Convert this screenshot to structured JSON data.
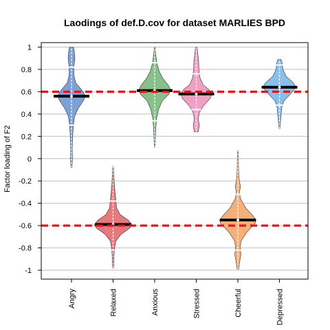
{
  "chart_data": {
    "type": "violin",
    "title": "Laodings of def.D.cov for dataset MARLIES BPD",
    "xlabel": "",
    "ylabel": "Factor loading of F2",
    "ylim": [
      -1.08,
      1.04
    ],
    "yticks": [
      1,
      0.8,
      0.6,
      0.4,
      0.2,
      0,
      -0.2,
      -0.4,
      -0.6,
      -0.8,
      -1
    ],
    "ytick_labels": [
      "1",
      "0.8",
      "0.6",
      "0.4",
      "0.2",
      "0",
      "-0.2",
      "-0.4",
      "-0.6",
      "-0.8",
      "-1"
    ],
    "grid": true,
    "reference_lines": [
      0.6,
      -0.6
    ],
    "reference_line_color": "#e8141b",
    "median_color": "#000000",
    "categories": [
      "Angry",
      "Relaxed",
      "Anxious",
      "Stressed",
      "Cheerful",
      "Depressed"
    ],
    "series": [
      {
        "category": "Angry",
        "color": "#7aa2d8",
        "median": 0.56,
        "ymin": -0.08,
        "ymax": 1.0,
        "mean": 0.56,
        "sd_low": 0.3,
        "sd_high": 0.82,
        "profile": [
          [
            -0.08,
            0.03
          ],
          [
            0.0,
            0.05
          ],
          [
            0.08,
            0.04
          ],
          [
            0.15,
            0.05
          ],
          [
            0.25,
            0.08
          ],
          [
            0.3,
            0.1
          ],
          [
            0.38,
            0.16
          ],
          [
            0.45,
            0.35
          ],
          [
            0.52,
            0.62
          ],
          [
            0.56,
            0.72
          ],
          [
            0.6,
            0.6
          ],
          [
            0.68,
            0.22
          ],
          [
            0.75,
            0.12
          ],
          [
            0.82,
            0.12
          ],
          [
            0.9,
            0.18
          ],
          [
            0.96,
            0.15
          ],
          [
            1.0,
            0.1
          ]
        ]
      },
      {
        "category": "Relaxed",
        "color": "#e8787a",
        "median": -0.59,
        "ymin": -0.98,
        "ymax": -0.07,
        "mean": -0.59,
        "sd_low": -0.82,
        "sd_high": -0.38,
        "profile": [
          [
            -0.98,
            0.03
          ],
          [
            -0.93,
            0.04
          ],
          [
            -0.86,
            0.05
          ],
          [
            -0.8,
            0.08
          ],
          [
            -0.74,
            0.14
          ],
          [
            -0.68,
            0.4
          ],
          [
            -0.62,
            0.88
          ],
          [
            -0.59,
            0.98
          ],
          [
            -0.55,
            0.78
          ],
          [
            -0.5,
            0.36
          ],
          [
            -0.44,
            0.18
          ],
          [
            -0.38,
            0.15
          ],
          [
            -0.3,
            0.1
          ],
          [
            -0.22,
            0.06
          ],
          [
            -0.15,
            0.04
          ],
          [
            -0.07,
            0.02
          ]
        ]
      },
      {
        "category": "Anxious",
        "color": "#86c08a",
        "median": 0.61,
        "ymin": 0.1,
        "ymax": 1.0,
        "mean": 0.61,
        "sd_low": 0.34,
        "sd_high": 0.86,
        "profile": [
          [
            0.1,
            0.02
          ],
          [
            0.2,
            0.04
          ],
          [
            0.28,
            0.06
          ],
          [
            0.36,
            0.1
          ],
          [
            0.44,
            0.2
          ],
          [
            0.52,
            0.4
          ],
          [
            0.58,
            0.75
          ],
          [
            0.62,
            0.82
          ],
          [
            0.66,
            0.7
          ],
          [
            0.72,
            0.42
          ],
          [
            0.78,
            0.24
          ],
          [
            0.84,
            0.14
          ],
          [
            0.9,
            0.08
          ],
          [
            0.96,
            0.04
          ],
          [
            1.0,
            0.02
          ]
        ]
      },
      {
        "category": "Stressed",
        "color": "#f0a0c4",
        "median": 0.58,
        "ymin": 0.24,
        "ymax": 1.0,
        "mean": 0.58,
        "sd_low": 0.44,
        "sd_high": 0.76,
        "profile": [
          [
            0.24,
            0.1
          ],
          [
            0.3,
            0.16
          ],
          [
            0.36,
            0.1
          ],
          [
            0.42,
            0.18
          ],
          [
            0.48,
            0.4
          ],
          [
            0.54,
            0.72
          ],
          [
            0.58,
            0.8
          ],
          [
            0.62,
            0.66
          ],
          [
            0.66,
            0.36
          ],
          [
            0.72,
            0.2
          ],
          [
            0.8,
            0.14
          ],
          [
            0.88,
            0.12
          ],
          [
            0.94,
            0.08
          ],
          [
            1.0,
            0.04
          ]
        ]
      },
      {
        "category": "Cheerful",
        "color": "#f5b07a",
        "median": -0.55,
        "ymin": -0.99,
        "ymax": 0.07,
        "mean": -0.55,
        "sd_low": -0.82,
        "sd_high": -0.32,
        "profile": [
          [
            -0.99,
            0.04
          ],
          [
            -0.94,
            0.08
          ],
          [
            -0.86,
            0.16
          ],
          [
            -0.8,
            0.12
          ],
          [
            -0.74,
            0.16
          ],
          [
            -0.66,
            0.46
          ],
          [
            -0.58,
            0.9
          ],
          [
            -0.55,
            0.95
          ],
          [
            -0.5,
            0.72
          ],
          [
            -0.44,
            0.4
          ],
          [
            -0.36,
            0.14
          ],
          [
            -0.3,
            0.08
          ],
          [
            -0.25,
            0.14
          ],
          [
            -0.2,
            0.08
          ],
          [
            -0.12,
            0.04
          ],
          [
            0.0,
            0.03
          ],
          [
            0.07,
            0.02
          ]
        ]
      },
      {
        "category": "Depressed",
        "color": "#86c0ee",
        "median": 0.64,
        "ymin": 0.27,
        "ymax": 0.89,
        "mean": 0.64,
        "sd_low": 0.48,
        "sd_high": 0.84,
        "profile": [
          [
            0.27,
            0.03
          ],
          [
            0.32,
            0.05
          ],
          [
            0.38,
            0.08
          ],
          [
            0.46,
            0.12
          ],
          [
            0.52,
            0.24
          ],
          [
            0.58,
            0.58
          ],
          [
            0.64,
            0.86
          ],
          [
            0.68,
            0.72
          ],
          [
            0.74,
            0.34
          ],
          [
            0.8,
            0.18
          ],
          [
            0.86,
            0.14
          ],
          [
            0.89,
            0.08
          ]
        ]
      }
    ]
  }
}
